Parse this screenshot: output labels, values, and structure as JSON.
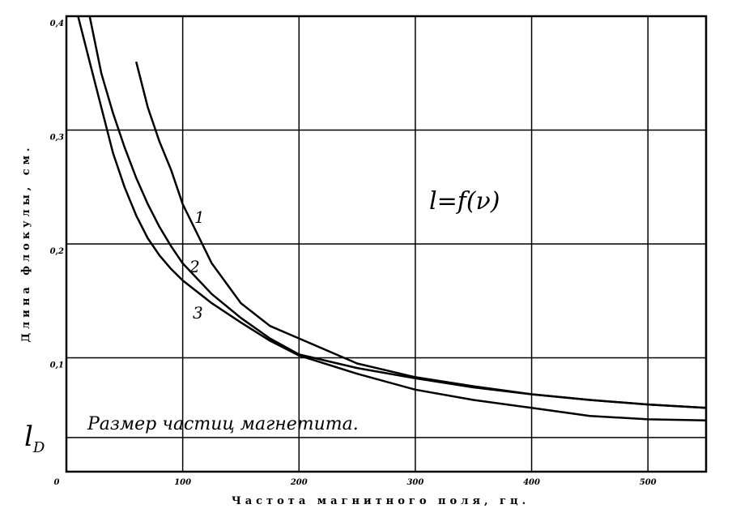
{
  "chart_data": {
    "type": "line",
    "x_label": "Частота магнитного поля, гц.",
    "y_label": "Длина флокулы, см.",
    "annotation": "l=f(ν)",
    "x": [
      10,
      20,
      30,
      40,
      50,
      60,
      70,
      80,
      90,
      100,
      125,
      150,
      175,
      200,
      250,
      300,
      350,
      400,
      450,
      500,
      550
    ],
    "series": [
      {
        "name": "1",
        "color": "#000000",
        "values": [
          null,
          null,
          null,
          null,
          null,
          0.36,
          0.32,
          0.29,
          0.265,
          0.235,
          0.183,
          0.148,
          0.128,
          0.117,
          0.095,
          0.083,
          0.075,
          0.068,
          0.063,
          0.059,
          0.056
        ]
      },
      {
        "name": "2",
        "color": "#000000",
        "values": [
          null,
          0.4,
          0.35,
          0.315,
          0.285,
          0.258,
          0.235,
          0.215,
          0.198,
          0.183,
          0.156,
          0.135,
          0.117,
          0.103,
          0.091,
          0.082,
          0.074,
          0.068,
          0.063,
          0.059,
          0.056
        ]
      },
      {
        "name": "3",
        "color": "#000000",
        "values": [
          0.4,
          0.36,
          0.32,
          0.28,
          0.25,
          0.225,
          0.205,
          0.19,
          0.178,
          0.168,
          0.148,
          0.131,
          0.115,
          0.102,
          0.086,
          0.072,
          0.063,
          0.056,
          0.049,
          0.046,
          0.045
        ]
      }
    ],
    "reference_line": {
      "value": 0.03,
      "label": "l",
      "label_sub": "D",
      "text": "Размер частиц магнетита."
    },
    "xlim": [
      0,
      550
    ],
    "ylim": [
      0,
      0.4
    ],
    "xticks": [
      0,
      100,
      200,
      300,
      400,
      500
    ],
    "yticks": [
      {
        "value": 0.1,
        "label": "0,1"
      },
      {
        "value": 0.2,
        "label": "0,2"
      },
      {
        "value": 0.3,
        "label": "0,3"
      },
      {
        "value": 0.4,
        "label": "0,4"
      }
    ],
    "grid": true
  }
}
